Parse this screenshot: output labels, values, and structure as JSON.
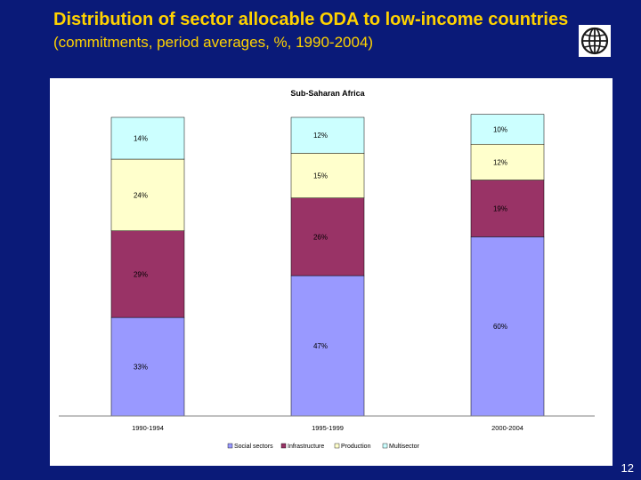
{
  "slide": {
    "title_main": "Distribution of sector allocable ODA to low-income countries",
    "title_sub": " (commitments, period averages, %, 1990-2004)",
    "page_number": "12",
    "logo_icon": "world-bank-globe-icon"
  },
  "colors": {
    "background": "#0a1a78",
    "title": "#ffd200",
    "social": "#9999ff",
    "infrastructure": "#993366",
    "production": "#ffffcc",
    "multisector": "#ccffff"
  },
  "chart_data": {
    "type": "bar",
    "stacked": true,
    "title": "Sub-Saharan Africa",
    "categories": [
      "1990-1994",
      "1995-1999",
      "2000-2004"
    ],
    "series": [
      {
        "name": "Social sectors",
        "values": [
          33,
          47,
          60
        ],
        "labels": [
          "33%",
          "47%",
          "60%"
        ],
        "color": "#9999ff"
      },
      {
        "name": "Infrastructure",
        "values": [
          29,
          26,
          19
        ],
        "labels": [
          "29%",
          "26%",
          "19%"
        ],
        "color": "#993366"
      },
      {
        "name": "Production",
        "values": [
          24,
          15,
          12
        ],
        "labels": [
          "24%",
          "15%",
          "12%"
        ],
        "color": "#ffffcc"
      },
      {
        "name": "Multisector",
        "values": [
          14,
          12,
          10
        ],
        "labels": [
          "14%",
          "12%",
          "10%"
        ],
        "color": "#ccffff"
      }
    ],
    "ylim": [
      0,
      100
    ],
    "legend_position": "bottom",
    "grid": false
  }
}
